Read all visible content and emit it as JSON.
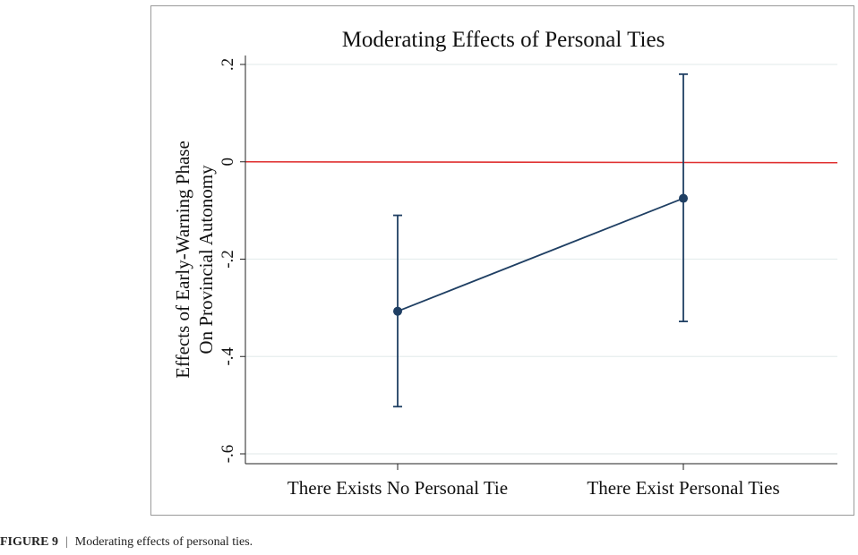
{
  "chart_data": {
    "type": "scatter",
    "title": "Moderating Effects of Personal Ties",
    "ylabel_line1": "Effects of Early-Warning Phase",
    "ylabel_line2": "On Provincial Autonomy",
    "xlabel": "",
    "categories": [
      "There Exists No Personal Tie",
      "There Exist Personal Ties"
    ],
    "y_ticks": [
      0.2,
      0,
      -0.2,
      -0.4,
      -0.6
    ],
    "y_tick_labels": [
      ".2",
      "0",
      "-.2",
      "-.4",
      "-.6"
    ],
    "ylim": [
      -0.62,
      0.22
    ],
    "grid": true,
    "reference_line": {
      "y": 0,
      "color": "#e03030"
    },
    "series": [
      {
        "estimates": [
          -0.307,
          -0.075
        ],
        "ci_lower": [
          -0.503,
          -0.328
        ],
        "ci_upper": [
          -0.11,
          0.18
        ],
        "color": "#1f3f63"
      }
    ]
  },
  "caption": {
    "label": "FIGURE 9",
    "separator": "|",
    "text": "Moderating effects of personal ties."
  },
  "colors": {
    "series": "#1f3f63",
    "grid": "#e6eeee",
    "reference": "#e03030",
    "frame": "#9a9a9a"
  }
}
